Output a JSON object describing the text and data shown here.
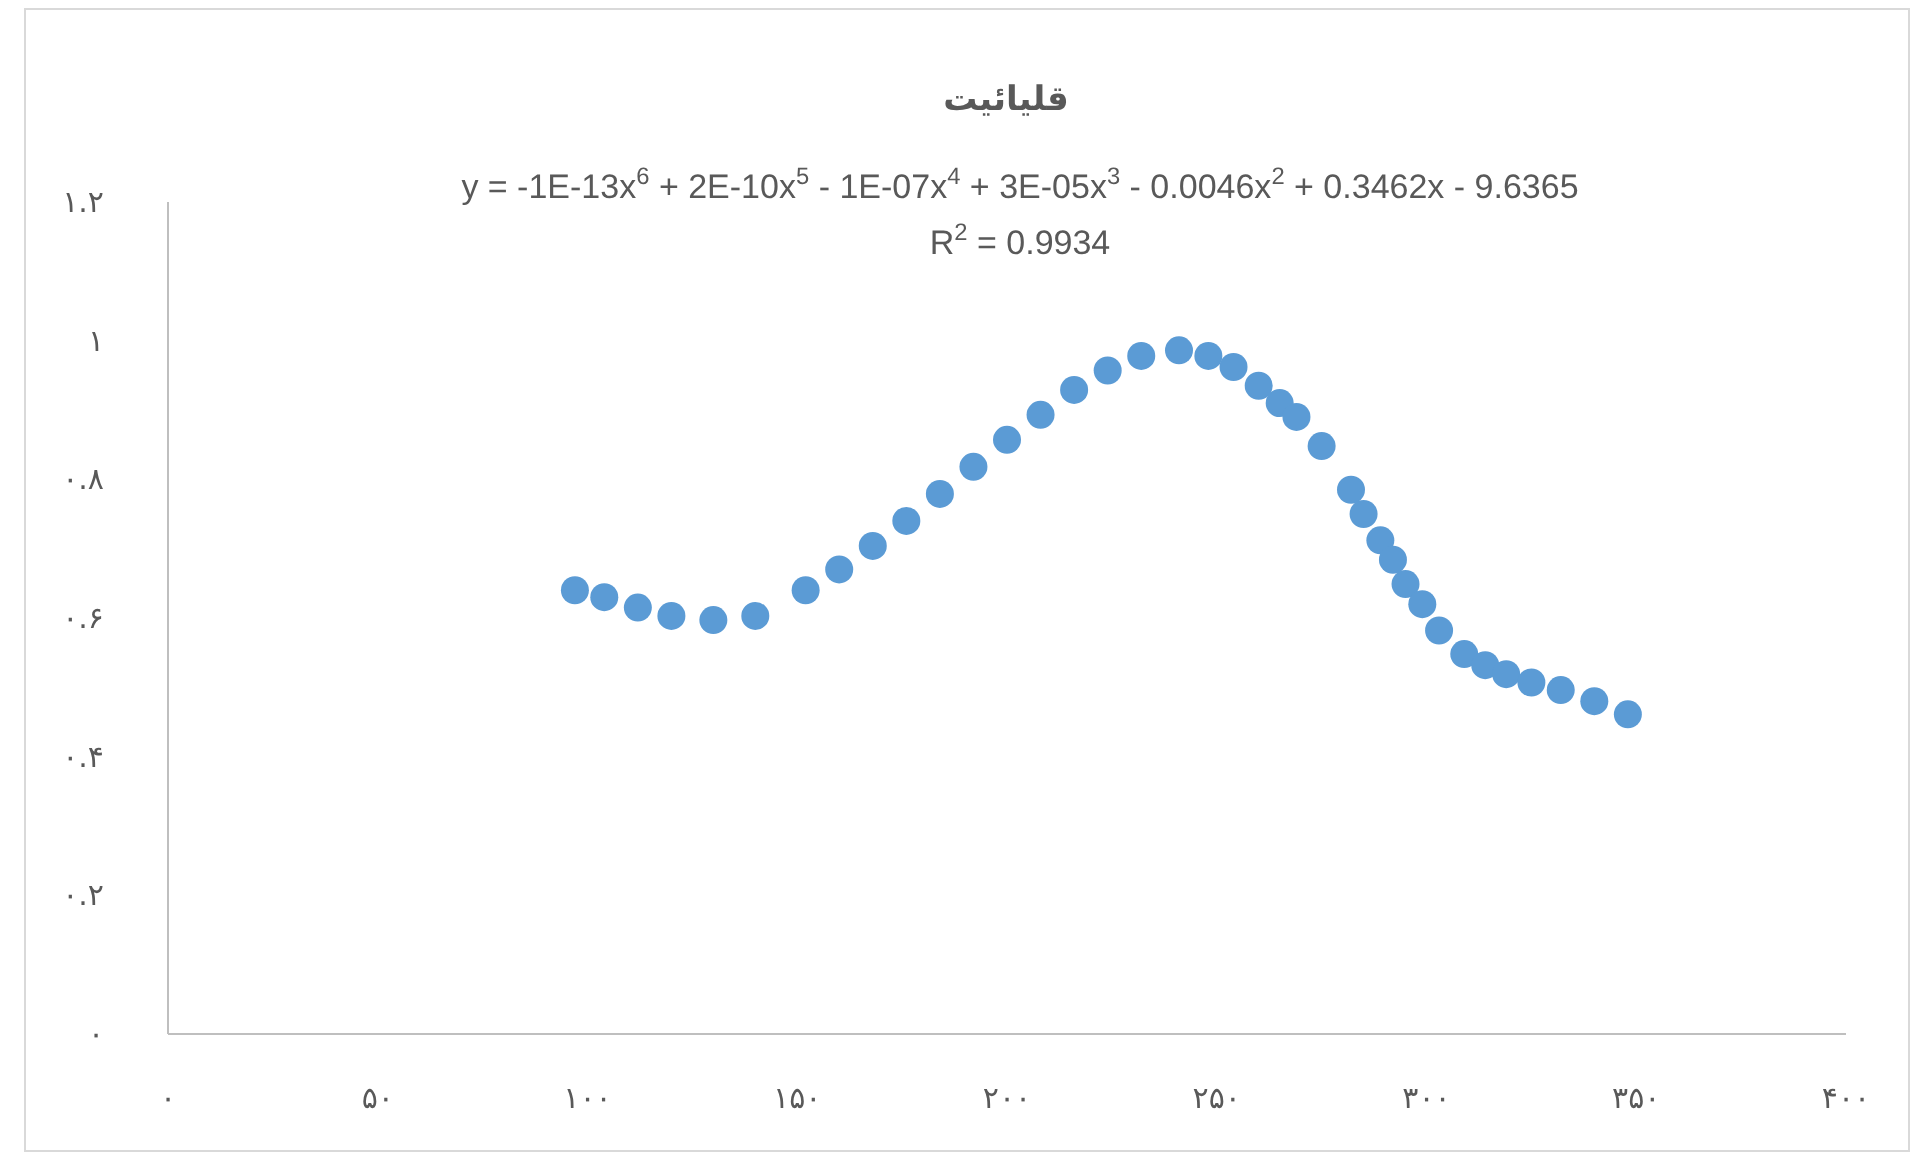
{
  "chart_data": {
    "type": "scatter",
    "title": "قلیائیت",
    "annotations": [
      "y = -1E-13x$^{6}$ + 2E-10x$^{5}$ - 1E-07x$^{4}$ + 3E-05x$^{3}$ - 0.0046x$^{2}$ + 0.3462x - 9.6365",
      "R$^{2}$ = 0.9934"
    ],
    "x": [
      97,
      104,
      112,
      120,
      130,
      140,
      152,
      160,
      168,
      176,
      184,
      192,
      200,
      208,
      216,
      224,
      232,
      241,
      248,
      254,
      260,
      265,
      269,
      275,
      282,
      285,
      289,
      292,
      295,
      299,
      303,
      309,
      314,
      319,
      325,
      332,
      340,
      348
    ],
    "values": [
      0.64,
      0.63,
      0.615,
      0.603,
      0.597,
      0.603,
      0.64,
      0.67,
      0.704,
      0.74,
      0.779,
      0.818,
      0.857,
      0.893,
      0.929,
      0.957,
      0.978,
      0.986,
      0.978,
      0.962,
      0.935,
      0.91,
      0.89,
      0.848,
      0.785,
      0.75,
      0.712,
      0.684,
      0.649,
      0.62,
      0.582,
      0.548,
      0.532,
      0.519,
      0.507,
      0.496,
      0.48,
      0.461
    ],
    "color": "#5b9bd5",
    "marker": "circle",
    "xlim": [
      0,
      400
    ],
    "ylim": [
      0,
      1.2
    ],
    "xticks": [
      {
        "value": 0,
        "label": "۰"
      },
      {
        "value": 50,
        "label": "۵۰"
      },
      {
        "value": 100,
        "label": "۱۰۰"
      },
      {
        "value": 150,
        "label": "۱۵۰"
      },
      {
        "value": 200,
        "label": "۲۰۰"
      },
      {
        "value": 250,
        "label": "۲۵۰"
      },
      {
        "value": 300,
        "label": "۳۰۰"
      },
      {
        "value": 350,
        "label": "۳۵۰"
      },
      {
        "value": 400,
        "label": "۴۰۰"
      }
    ],
    "yticks": [
      {
        "value": 0,
        "label": "۰"
      },
      {
        "value": 0.2,
        "label": "۰.۲"
      },
      {
        "value": 0.4,
        "label": "۰.۴"
      },
      {
        "value": 0.6,
        "label": "۰.۶"
      },
      {
        "value": 0.8,
        "label": "۰.۸"
      },
      {
        "value": 1,
        "label": "۱"
      },
      {
        "value": 1.2,
        "label": "۱.۲"
      }
    ]
  }
}
